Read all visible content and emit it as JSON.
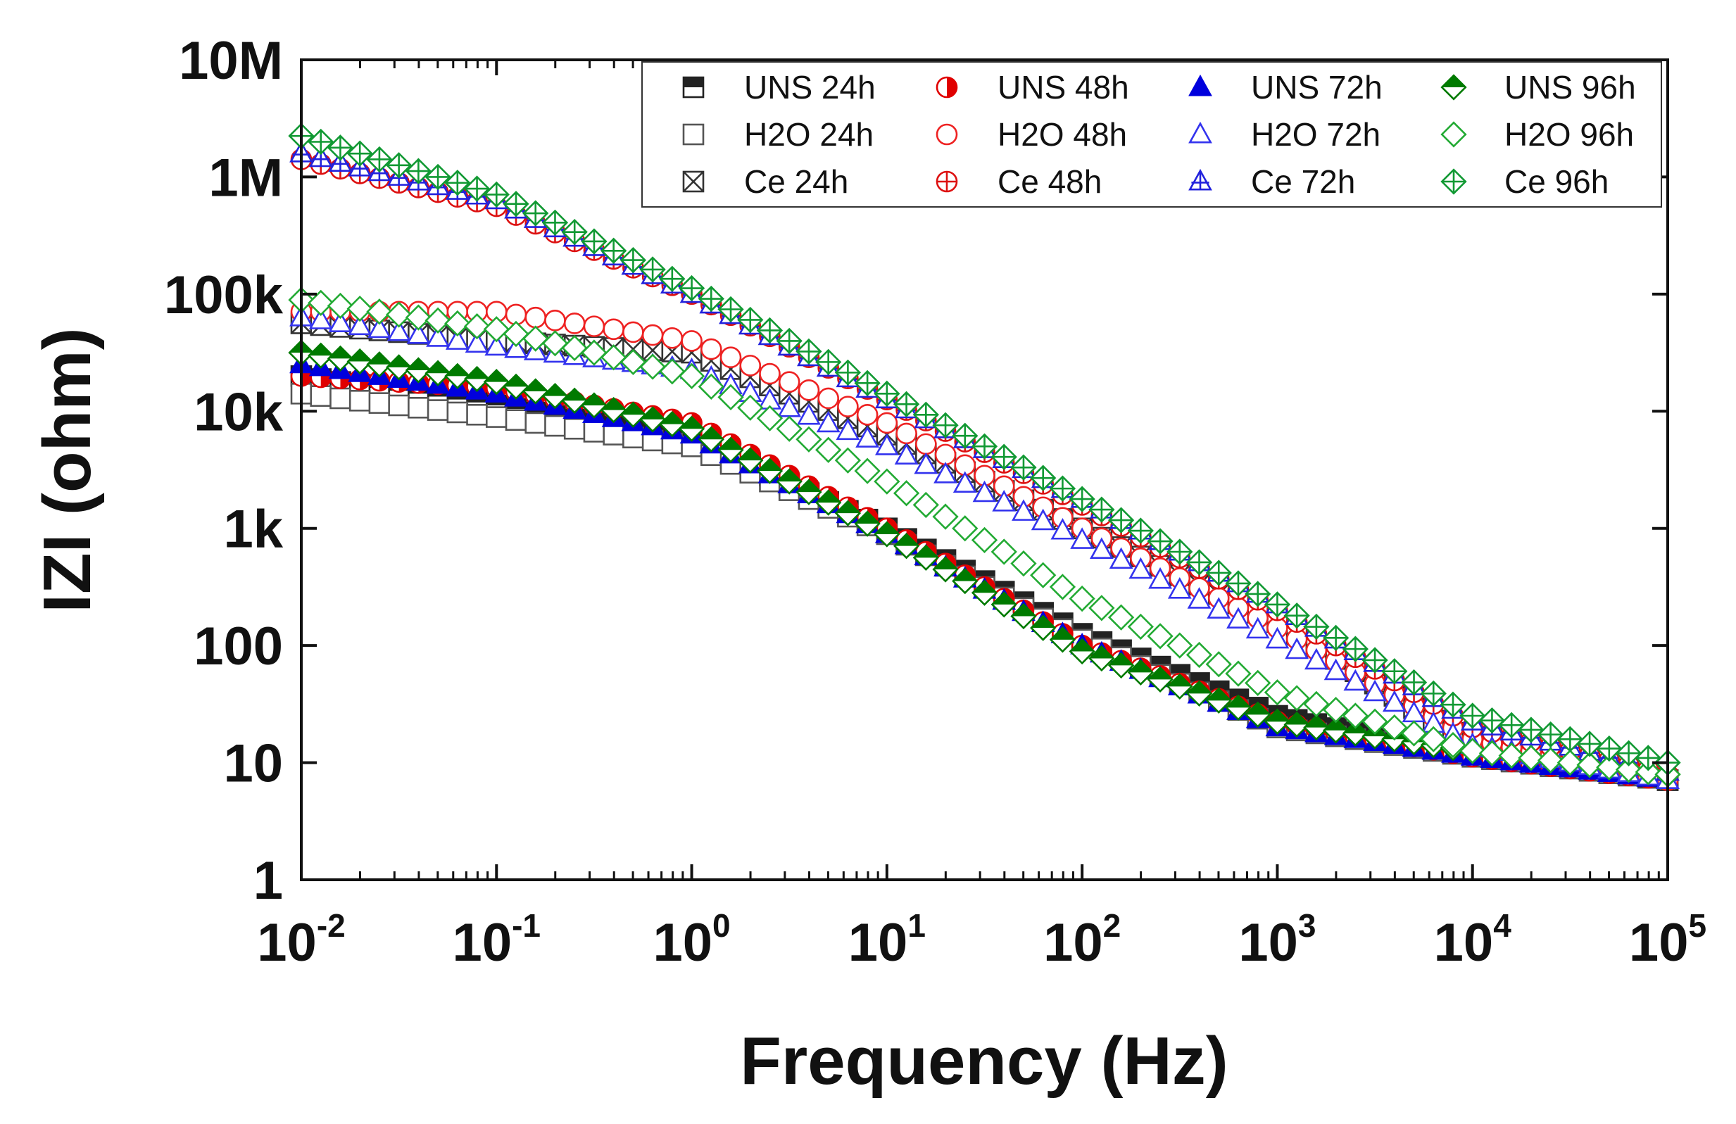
{
  "chart_data": {
    "type": "scatter",
    "title": "",
    "xlabel": "Frequency (Hz)",
    "ylabel": "IZI (ohm)",
    "xscale": "log",
    "yscale": "log",
    "xlim": [
      0.01,
      100000
    ],
    "ylim": [
      1,
      10000000
    ],
    "x_ticks": [
      {
        "value": 0.01,
        "base": "10",
        "exp": "-2"
      },
      {
        "value": 0.1,
        "base": "10",
        "exp": "-1"
      },
      {
        "value": 1,
        "base": "10",
        "exp": "0"
      },
      {
        "value": 10,
        "base": "10",
        "exp": "1"
      },
      {
        "value": 100,
        "base": "10",
        "exp": "2"
      },
      {
        "value": 1000,
        "base": "10",
        "exp": "3"
      },
      {
        "value": 10000,
        "base": "10",
        "exp": "4"
      },
      {
        "value": 100000,
        "base": "10",
        "exp": "5"
      }
    ],
    "y_ticks": [
      {
        "value": 1,
        "label": "1"
      },
      {
        "value": 10,
        "label": "10"
      },
      {
        "value": 100,
        "label": "100"
      },
      {
        "value": 1000,
        "label": "1k"
      },
      {
        "value": 10000,
        "label": "10k"
      },
      {
        "value": 100000,
        "label": "100k"
      },
      {
        "value": 1000000,
        "label": "1M"
      },
      {
        "value": 10000000,
        "label": "10M"
      }
    ],
    "legend_position": "top-right",
    "legend_columns": 4,
    "points_per_decade": 10,
    "series": [
      {
        "name": "UNS 24h",
        "color": "#222222",
        "marker": "square-half",
        "log_x": [
          -2,
          -1,
          0,
          1,
          2,
          3,
          4,
          5
        ],
        "log_z": [
          4.3,
          4.05,
          3.75,
          3.0,
          2.1,
          1.4,
          1.05,
          0.85
        ]
      },
      {
        "name": "H2O 24h",
        "color": "#555555",
        "marker": "square-open",
        "log_x": [
          -2,
          -1,
          0,
          1,
          2,
          3,
          4,
          5
        ],
        "log_z": [
          4.15,
          3.95,
          3.7,
          2.95,
          2.05,
          1.3,
          1.05,
          0.85
        ]
      },
      {
        "name": "Ce 24h",
        "color": "#333333",
        "marker": "square-x",
        "log_x": [
          -2,
          -1,
          0,
          1,
          2,
          3,
          4,
          5
        ],
        "log_z": [
          4.75,
          4.6,
          4.5,
          3.8,
          3.0,
          2.2,
          1.15,
          0.85
        ]
      },
      {
        "name": "UNS 48h",
        "color": "#e00000",
        "marker": "circle-half",
        "log_x": [
          -2,
          -1,
          0,
          1,
          2,
          3,
          4,
          5
        ],
        "log_z": [
          4.3,
          4.2,
          3.9,
          3.0,
          2.0,
          1.35,
          1.05,
          0.85
        ]
      },
      {
        "name": "H2O 48h",
        "color": "#ee2222",
        "marker": "circle-open",
        "log_x": [
          -2,
          -1,
          0,
          1,
          2,
          3,
          4,
          5
        ],
        "log_z": [
          4.85,
          4.85,
          4.6,
          3.9,
          3.0,
          2.15,
          1.2,
          0.85
        ]
      },
      {
        "name": "Ce 48h",
        "color": "#dd1111",
        "marker": "circle-plus",
        "log_x": [
          -2,
          -1,
          0,
          1,
          2,
          3,
          4,
          5
        ],
        "log_z": [
          6.15,
          5.75,
          5.0,
          4.1,
          3.2,
          2.3,
          1.3,
          0.9
        ]
      },
      {
        "name": "UNS 72h",
        "color": "#0000dd",
        "marker": "triangle-solid",
        "log_x": [
          -2,
          -1,
          0,
          1,
          2,
          3,
          4,
          5
        ],
        "log_z": [
          4.4,
          4.15,
          3.8,
          2.95,
          2.0,
          1.3,
          1.05,
          0.85
        ]
      },
      {
        "name": "H2O 72h",
        "color": "#3333ee",
        "marker": "triangle-open",
        "log_x": [
          -2,
          -1,
          0,
          1,
          2,
          3,
          4,
          5
        ],
        "log_z": [
          4.8,
          4.55,
          4.35,
          3.7,
          2.9,
          2.05,
          1.15,
          0.85
        ]
      },
      {
        "name": "Ce 72h",
        "color": "#2222dd",
        "marker": "triangle-plus",
        "log_x": [
          -2,
          -1,
          0,
          1,
          2,
          3,
          4,
          5
        ],
        "log_z": [
          6.2,
          5.8,
          5.0,
          4.1,
          3.25,
          2.35,
          1.35,
          0.92
        ]
      },
      {
        "name": "UNS 96h",
        "color": "#007a00",
        "marker": "diamond-half",
        "log_x": [
          -2,
          -1,
          0,
          1,
          2,
          3,
          4,
          5
        ],
        "log_z": [
          4.5,
          4.25,
          3.85,
          2.95,
          1.95,
          1.35,
          1.1,
          0.9
        ]
      },
      {
        "name": "H2O 96h",
        "color": "#22aa33",
        "marker": "diamond-open",
        "log_x": [
          -2,
          -1,
          0,
          1,
          2,
          3,
          4,
          5
        ],
        "log_z": [
          4.95,
          4.7,
          4.3,
          3.4,
          2.4,
          1.6,
          1.1,
          0.9
        ]
      },
      {
        "name": "Ce 96h",
        "color": "#119933",
        "marker": "diamond-plus",
        "log_x": [
          -2,
          -1,
          0,
          1,
          2,
          3,
          4,
          5
        ],
        "log_z": [
          6.35,
          5.85,
          5.05,
          4.15,
          3.25,
          2.35,
          1.4,
          1.0
        ]
      }
    ]
  }
}
